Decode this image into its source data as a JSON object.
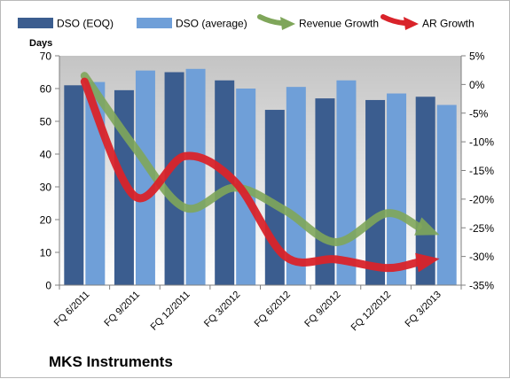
{
  "caption": "MKS Instruments",
  "chart_data": {
    "type": "bar",
    "categories": [
      "FQ 6/2011",
      "FQ 9/2011",
      "FQ 12/2011",
      "FQ 3/2012",
      "FQ 6/2012",
      "FQ 9/2012",
      "FQ 12/2012",
      "FQ 3/2013"
    ],
    "title": "",
    "ylabel": "Days",
    "xlabel": "",
    "ylim": [
      0,
      70
    ],
    "y_ticks": [
      0,
      10,
      20,
      30,
      40,
      50,
      60,
      70
    ],
    "y2lim": [
      -35,
      5
    ],
    "y2_ticks": [
      "5%",
      "0%",
      "-5%",
      "-10%",
      "-15%",
      "-20%",
      "-25%",
      "-30%",
      "-35%"
    ],
    "y2_tick_values": [
      5,
      0,
      -5,
      -10,
      -15,
      -20,
      -25,
      -30,
      -35
    ],
    "grid": false,
    "legend_position": "top",
    "series": [
      {
        "name": "DSO (EOQ)",
        "type": "bar",
        "axis": "left",
        "color": "#3b5d8f",
        "values": [
          61,
          59.5,
          65,
          62.5,
          53.5,
          57,
          56.5,
          57.5
        ]
      },
      {
        "name": "DSO (average)",
        "type": "bar",
        "axis": "left",
        "color": "#6f9fd8",
        "values": [
          62,
          65.5,
          66,
          60,
          60.5,
          62.5,
          58.5,
          55
        ]
      },
      {
        "name": "Revenue Growth",
        "type": "line",
        "axis": "right",
        "color": "#7fa65a",
        "values": [
          1.5,
          -11,
          -21.5,
          -18,
          -22,
          -27.5,
          -22.5,
          -26
        ]
      },
      {
        "name": "AR Growth",
        "type": "line",
        "axis": "right",
        "color": "#d9232a",
        "values": [
          0.5,
          -19.5,
          -12.5,
          -17,
          -30,
          -30.5,
          -32,
          -30.5
        ]
      }
    ]
  }
}
